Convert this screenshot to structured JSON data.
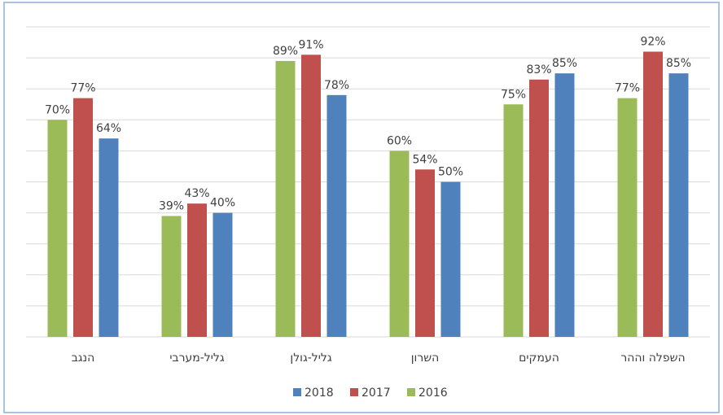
{
  "chart_data": {
    "type": "bar",
    "categories": [
      "הנגב",
      "גליל-מערבי",
      "גליל-גולן",
      "השרון",
      "העמקים",
      "השפלה וההר"
    ],
    "series": [
      {
        "name": "2016",
        "color": "#9bbb59",
        "values": [
          70,
          39,
          89,
          60,
          75,
          77
        ],
        "value_labels": [
          "70%",
          "39%",
          "89%",
          "60%",
          "75%",
          "77%"
        ]
      },
      {
        "name": "2017",
        "color": "#c0504d",
        "values": [
          77,
          43,
          91,
          54,
          83,
          92
        ],
        "value_labels": [
          "77%",
          "43%",
          "91%",
          "54%",
          "83%",
          "92%"
        ]
      },
      {
        "name": "2018",
        "color": "#4f81bd",
        "values": [
          64,
          40,
          78,
          50,
          85,
          85
        ],
        "value_labels": [
          "64%",
          "40%",
          "78%",
          "50%",
          "85%",
          "85%"
        ]
      }
    ],
    "ylim": [
      0,
      100
    ],
    "yticks": [
      0,
      10,
      20,
      30,
      40,
      50,
      60,
      70,
      80,
      90,
      100
    ],
    "grid": true,
    "legend": "bottom"
  }
}
